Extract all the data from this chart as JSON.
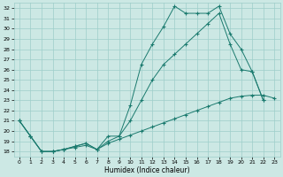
{
  "xlabel": "Humidex (Indice chaleur)",
  "background_color": "#cce8e4",
  "grid_color": "#9ececa",
  "line_color": "#1a7a6e",
  "xlim": [
    -0.5,
    23.5
  ],
  "ylim": [
    17.5,
    32.5
  ],
  "x_ticks": [
    0,
    1,
    2,
    3,
    4,
    5,
    6,
    7,
    8,
    9,
    10,
    11,
    12,
    13,
    14,
    15,
    16,
    17,
    18,
    19,
    20,
    21,
    22,
    23
  ],
  "y_ticks": [
    18,
    19,
    20,
    21,
    22,
    23,
    24,
    25,
    26,
    27,
    28,
    29,
    30,
    31,
    32
  ],
  "series1_x": [
    0,
    1,
    2,
    3,
    4,
    5,
    6,
    7,
    8,
    9,
    10,
    11,
    12,
    13,
    14,
    15,
    16,
    17,
    18,
    19,
    20,
    21,
    22
  ],
  "series1_y": [
    21.0,
    19.5,
    18.0,
    18.0,
    18.2,
    18.5,
    18.8,
    18.2,
    19.5,
    19.5,
    22.5,
    26.5,
    28.5,
    30.2,
    32.2,
    31.5,
    31.5,
    31.5,
    32.2,
    29.5,
    28.0,
    25.8,
    23.0
  ],
  "series2_x": [
    0,
    1,
    2,
    3,
    4,
    5,
    6,
    7,
    8,
    9,
    10,
    11,
    12,
    13,
    14,
    15,
    16,
    17,
    18,
    19,
    20,
    21,
    22
  ],
  "series2_y": [
    21.0,
    19.5,
    18.0,
    18.0,
    18.2,
    18.5,
    18.8,
    18.2,
    19.0,
    19.5,
    21.0,
    23.0,
    25.0,
    26.5,
    27.5,
    28.5,
    29.5,
    30.5,
    31.5,
    28.5,
    26.0,
    25.8,
    23.0
  ],
  "series3_x": [
    0,
    1,
    2,
    3,
    4,
    5,
    6,
    7,
    8,
    9,
    10,
    11,
    12,
    13,
    14,
    15,
    16,
    17,
    18,
    19,
    20,
    21,
    22,
    23
  ],
  "series3_y": [
    21.0,
    19.5,
    18.0,
    18.0,
    18.2,
    18.4,
    18.6,
    18.2,
    18.8,
    19.2,
    19.6,
    20.0,
    20.4,
    20.8,
    21.2,
    21.6,
    22.0,
    22.4,
    22.8,
    23.2,
    23.4,
    23.5,
    23.5,
    23.2
  ]
}
